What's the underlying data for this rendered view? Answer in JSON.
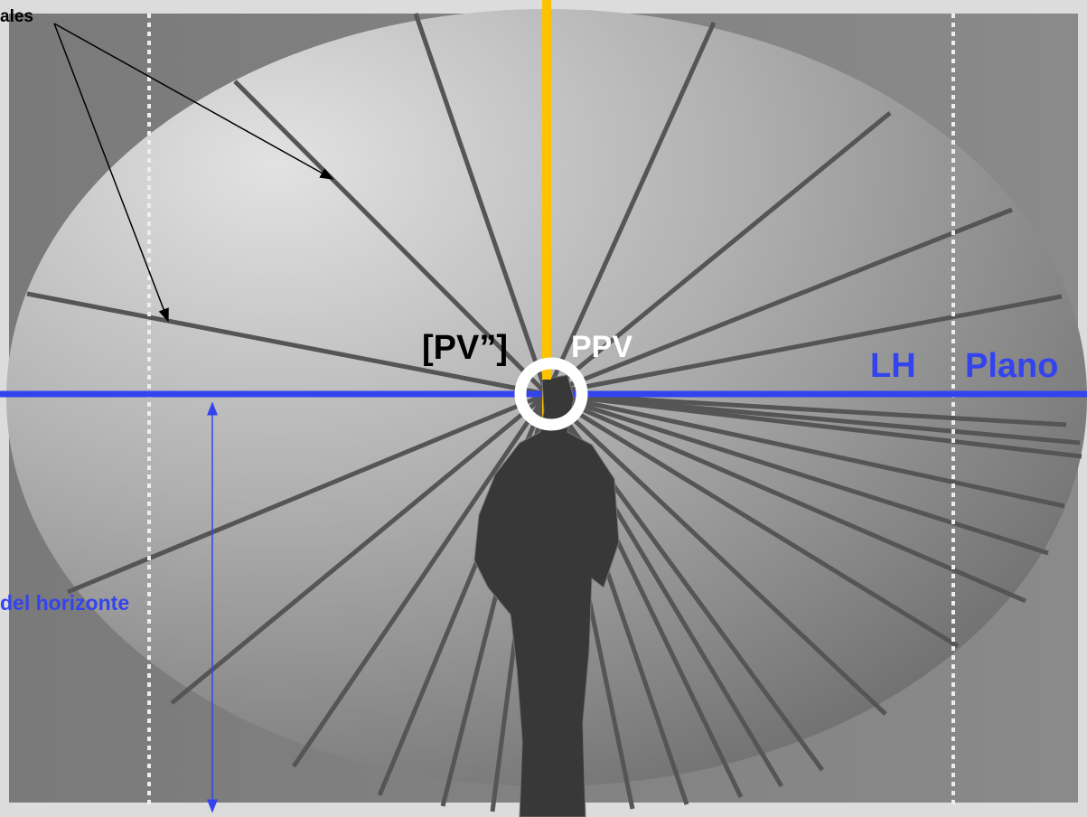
{
  "labels": {
    "arrow_label": "ales",
    "pv": "[PV”]",
    "ppv": "PPV",
    "lh": "LH",
    "plano": "Plano",
    "horizon_height": "del horizonte"
  }
}
